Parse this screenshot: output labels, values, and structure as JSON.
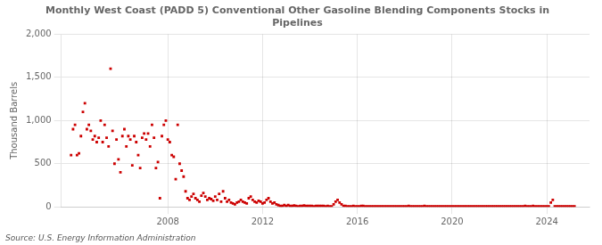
{
  "chart_data": {
    "type": "scatter",
    "title": "Monthly West Coast (PADD 5) Conventional Other Gasoline Blending Components Stocks in\nPipelines",
    "ylabel": "Thousand Barrels",
    "source": "Source: U.S. Energy Information Administration",
    "color": "#cc0000",
    "marker": "square",
    "grid": true,
    "xlim": [
      2003.5,
      2025.8
    ],
    "xticks": [
      2008,
      2012,
      2016,
      2020,
      2024
    ],
    "ylim": [
      0,
      2000
    ],
    "yticks": [
      0,
      500,
      {
        "value": 1000,
        "label": "1,000"
      },
      {
        "value": 1500,
        "label": "1,500"
      },
      {
        "value": 2000,
        "label": "2,000"
      }
    ],
    "x": [
      2003.917,
      2004.0,
      2004.083,
      2004.167,
      2004.25,
      2004.333,
      2004.417,
      2004.5,
      2004.583,
      2004.667,
      2004.75,
      2004.833,
      2004.917,
      2005.0,
      2005.083,
      2005.167,
      2005.25,
      2005.333,
      2005.417,
      2005.5,
      2005.583,
      2005.667,
      2005.75,
      2005.833,
      2005.917,
      2006.0,
      2006.083,
      2006.167,
      2006.25,
      2006.333,
      2006.417,
      2006.5,
      2006.583,
      2006.667,
      2006.75,
      2006.833,
      2006.917,
      2007.0,
      2007.083,
      2007.167,
      2007.25,
      2007.333,
      2007.417,
      2007.5,
      2007.583,
      2007.667,
      2007.75,
      2007.833,
      2007.917,
      2008.0,
      2008.083,
      2008.167,
      2008.25,
      2008.333,
      2008.417,
      2008.5,
      2008.583,
      2008.667,
      2008.75,
      2008.833,
      2008.917,
      2009.0,
      2009.083,
      2009.167,
      2009.25,
      2009.333,
      2009.417,
      2009.5,
      2009.583,
      2009.667,
      2009.75,
      2009.833,
      2009.917,
      2010.0,
      2010.083,
      2010.167,
      2010.25,
      2010.333,
      2010.417,
      2010.5,
      2010.583,
      2010.667,
      2010.75,
      2010.833,
      2010.917,
      2011.0,
      2011.083,
      2011.167,
      2011.25,
      2011.333,
      2011.417,
      2011.5,
      2011.583,
      2011.667,
      2011.75,
      2011.833,
      2011.917,
      2012.0,
      2012.083,
      2012.167,
      2012.25,
      2012.333,
      2012.417,
      2012.5,
      2012.583,
      2012.667,
      2012.75,
      2012.833,
      2012.917,
      2013.0,
      2013.083,
      2013.167,
      2013.25,
      2013.333,
      2013.417,
      2013.5,
      2013.583,
      2013.667,
      2013.75,
      2013.833,
      2013.917,
      2014.0,
      2014.083,
      2014.167,
      2014.25,
      2014.333,
      2014.417,
      2014.5,
      2014.583,
      2014.667,
      2014.75,
      2014.833,
      2014.917,
      2015.0,
      2015.083,
      2015.167,
      2015.25,
      2015.333,
      2015.417,
      2015.5,
      2015.583,
      2015.667,
      2015.75,
      2015.833,
      2015.917,
      2016.0,
      2016.083,
      2016.167,
      2016.25,
      2016.333,
      2016.417,
      2016.5,
      2016.583,
      2016.667,
      2016.75,
      2016.833,
      2016.917,
      2017.0,
      2017.083,
      2017.167,
      2017.25,
      2017.333,
      2017.417,
      2017.5,
      2017.583,
      2017.667,
      2017.75,
      2017.833,
      2017.917,
      2018.0,
      2018.083,
      2018.167,
      2018.25,
      2018.333,
      2018.417,
      2018.5,
      2018.583,
      2018.667,
      2018.75,
      2018.833,
      2018.917,
      2019.0,
      2019.083,
      2019.167,
      2019.25,
      2019.333,
      2019.417,
      2019.5,
      2019.583,
      2019.667,
      2019.75,
      2019.833,
      2019.917,
      2020.0,
      2020.083,
      2020.167,
      2020.25,
      2020.333,
      2020.417,
      2020.5,
      2020.583,
      2020.667,
      2020.75,
      2020.833,
      2020.917,
      2021.0,
      2021.083,
      2021.167,
      2021.25,
      2021.333,
      2021.417,
      2021.5,
      2021.583,
      2021.667,
      2021.75,
      2021.833,
      2021.917,
      2022.0,
      2022.083,
      2022.167,
      2022.25,
      2022.333,
      2022.417,
      2022.5,
      2022.583,
      2022.667,
      2022.75,
      2022.833,
      2022.917,
      2023.0,
      2023.083,
      2023.167,
      2023.25,
      2023.333,
      2023.417,
      2023.5,
      2023.583,
      2023.667,
      2023.75,
      2023.833,
      2023.917,
      2024.0,
      2024.083,
      2024.167,
      2024.25,
      2024.333,
      2024.417,
      2024.5,
      2024.583,
      2024.667,
      2024.75,
      2024.833,
      2024.917,
      2025.0,
      2025.083,
      2025.167
    ],
    "values": [
      600,
      900,
      950,
      600,
      620,
      820,
      1100,
      1200,
      900,
      950,
      880,
      780,
      820,
      750,
      800,
      1000,
      750,
      950,
      800,
      700,
      1600,
      880,
      500,
      780,
      550,
      400,
      820,
      900,
      700,
      820,
      780,
      480,
      820,
      750,
      600,
      450,
      800,
      850,
      780,
      850,
      700,
      950,
      800,
      450,
      520,
      100,
      820,
      950,
      1000,
      780,
      750,
      600,
      580,
      320,
      950,
      500,
      420,
      350,
      180,
      100,
      80,
      120,
      150,
      100,
      80,
      60,
      130,
      160,
      120,
      80,
      100,
      90,
      70,
      120,
      80,
      150,
      60,
      180,
      100,
      60,
      80,
      50,
      40,
      30,
      50,
      60,
      80,
      60,
      50,
      40,
      100,
      120,
      80,
      60,
      50,
      70,
      60,
      40,
      50,
      80,
      100,
      60,
      40,
      50,
      30,
      20,
      10,
      10,
      20,
      10,
      20,
      10,
      10,
      15,
      10,
      5,
      10,
      10,
      15,
      10,
      10,
      10,
      10,
      5,
      10,
      10,
      10,
      10,
      10,
      5,
      10,
      5,
      5,
      30,
      60,
      80,
      50,
      30,
      10,
      10,
      5,
      5,
      5,
      10,
      5,
      5,
      5,
      10,
      10,
      5,
      5,
      5,
      5,
      5,
      5,
      5,
      5,
      5,
      5,
      5,
      5,
      5,
      5,
      5,
      5,
      5,
      5,
      5,
      5,
      5,
      5,
      10,
      5,
      5,
      5,
      5,
      5,
      5,
      5,
      10,
      5,
      5,
      5,
      5,
      5,
      5,
      5,
      5,
      5,
      5,
      5,
      5,
      5,
      5,
      5,
      5,
      5,
      5,
      5,
      5,
      5,
      5,
      5,
      5,
      5,
      5,
      5,
      5,
      5,
      5,
      5,
      5,
      5,
      5,
      5,
      5,
      5,
      5,
      5,
      5,
      5,
      5,
      5,
      5,
      5,
      5,
      5,
      5,
      5,
      5,
      10,
      5,
      5,
      5,
      10,
      5,
      5,
      5,
      5,
      5,
      5,
      5,
      5,
      50,
      80,
      5,
      5,
      5,
      5,
      5,
      5,
      5,
      5,
      5,
      5,
      5
    ]
  }
}
